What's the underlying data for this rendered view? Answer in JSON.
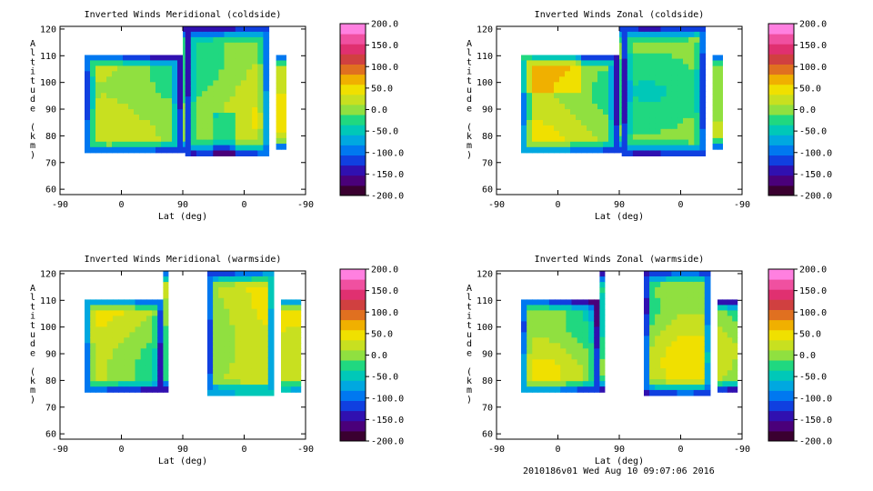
{
  "colors": {
    "scale": [
      "#3a0030",
      "#4a007a",
      "#3010b0",
      "#1040e0",
      "#0078f0",
      "#00a8e0",
      "#00c8b8",
      "#20d880",
      "#90e040",
      "#c8e020",
      "#f0e000",
      "#f0b000",
      "#e07020",
      "#d04040",
      "#e03070",
      "#f050a0",
      "#ff80e0"
    ],
    "axis": "#000000"
  },
  "footer": {
    "run_stamp": "2010186v01 Wed Aug 10 09:07:06 2016"
  },
  "chart_data": [
    {
      "type": "heatmap",
      "title": "Inverted Winds Meridional (coldside)",
      "xlabel": "Lat (deg)",
      "ylabel": "Altitude (km)",
      "xticks": [
        "-90",
        "0",
        "90",
        "0",
        "-90"
      ],
      "yticks": [
        "60",
        "70",
        "80",
        "90",
        "100",
        "110",
        "120"
      ],
      "ylim": [
        58,
        121
      ],
      "colorbar": {
        "min": -200,
        "max": 200,
        "ticks": [
          "200.0",
          "150.0",
          "100.0",
          "50.0",
          "0.0",
          "-50.0",
          "-100.0",
          "-150.0",
          "-200.0"
        ]
      }
    },
    {
      "type": "heatmap",
      "title": "Inverted Winds Zonal (coldside)",
      "xlabel": "Lat (deg)",
      "ylabel": "Altitude (km)",
      "xticks": [
        "-90",
        "0",
        "90",
        "0",
        "-90"
      ],
      "yticks": [
        "60",
        "70",
        "80",
        "90",
        "100",
        "110",
        "120"
      ],
      "ylim": [
        58,
        121
      ],
      "colorbar": {
        "min": -200,
        "max": 200,
        "ticks": [
          "200.0",
          "150.0",
          "100.0",
          "50.0",
          "0.0",
          "-50.0",
          "-100.0",
          "-150.0",
          "-200.0"
        ]
      }
    },
    {
      "type": "heatmap",
      "title": "Inverted Winds Meridional (warmside)",
      "xlabel": "Lat (deg)",
      "ylabel": "Altitude (km)",
      "xticks": [
        "-90",
        "0",
        "90",
        "0",
        "-90"
      ],
      "yticks": [
        "60",
        "70",
        "80",
        "90",
        "100",
        "110",
        "120"
      ],
      "ylim": [
        58,
        121
      ],
      "colorbar": {
        "min": -200,
        "max": 200,
        "ticks": [
          "200.0",
          "150.0",
          "100.0",
          "50.0",
          "0.0",
          "-50.0",
          "-100.0",
          "-150.0",
          "-200.0"
        ]
      }
    },
    {
      "type": "heatmap",
      "title": "Inverted Winds Zonal (warmside)",
      "xlabel": "Lat (deg)",
      "ylabel": "Altitude (km)",
      "xticks": [
        "-90",
        "0",
        "90",
        "0",
        "-90"
      ],
      "yticks": [
        "60",
        "70",
        "80",
        "90",
        "100",
        "110",
        "120"
      ],
      "ylim": [
        58,
        121
      ],
      "colorbar": {
        "min": -200,
        "max": 200,
        "ticks": [
          "200.0",
          "150.0",
          "100.0",
          "50.0",
          "0.0",
          "-50.0",
          "-100.0",
          "-150.0",
          "-200.0"
        ]
      }
    }
  ]
}
